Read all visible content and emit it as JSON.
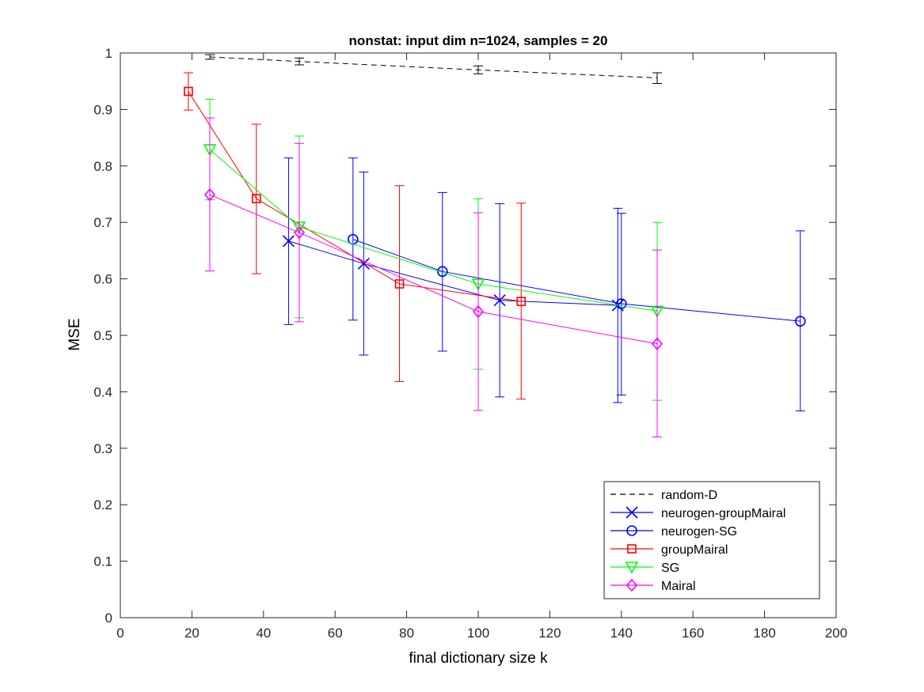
{
  "chart_data": {
    "type": "line",
    "title": "nonstat: input dim n=1024, samples = 20",
    "xlabel": "final dictionary size k",
    "ylabel": "MSE",
    "xlim": [
      0,
      200
    ],
    "ylim": [
      0,
      1
    ],
    "xticks": [
      0,
      20,
      40,
      60,
      80,
      100,
      120,
      140,
      160,
      180,
      200
    ],
    "yticks": [
      0,
      0.1,
      0.2,
      0.3,
      0.4,
      0.5,
      0.6,
      0.7,
      0.8,
      0.9,
      1
    ],
    "grid": false,
    "legend_position": "bottom-right",
    "series": [
      {
        "name": "random-D",
        "color": "#000000",
        "marker": "none",
        "dash": true,
        "points": [
          {
            "x": 25,
            "y": 0.993,
            "lo": 0.989,
            "hi": 0.997
          },
          {
            "x": 50,
            "y": 0.985,
            "lo": 0.979,
            "hi": 0.991
          },
          {
            "x": 100,
            "y": 0.97,
            "lo": 0.963,
            "hi": 0.977
          },
          {
            "x": 150,
            "y": 0.956,
            "lo": 0.946,
            "hi": 0.965
          }
        ]
      },
      {
        "name": "neurogen-groupMairal",
        "color": "#0000ff",
        "marker": "x",
        "dash": false,
        "points": [
          {
            "x": 47,
            "y": 0.667,
            "lo": 0.519,
            "hi": 0.814
          },
          {
            "x": 68,
            "y": 0.627,
            "lo": 0.465,
            "hi": 0.789
          },
          {
            "x": 106,
            "y": 0.562,
            "lo": 0.391,
            "hi": 0.733
          },
          {
            "x": 139,
            "y": 0.553,
            "lo": 0.381,
            "hi": 0.725
          }
        ]
      },
      {
        "name": "neurogen-SG",
        "color": "#0000ff",
        "marker": "circle",
        "dash": false,
        "points": [
          {
            "x": 65,
            "y": 0.67,
            "lo": 0.527,
            "hi": 0.814
          },
          {
            "x": 90,
            "y": 0.613,
            "lo": 0.472,
            "hi": 0.753
          },
          {
            "x": 140,
            "y": 0.556,
            "lo": 0.394,
            "hi": 0.716
          },
          {
            "x": 190,
            "y": 0.525,
            "lo": 0.366,
            "hi": 0.685
          }
        ]
      },
      {
        "name": "groupMairal",
        "color": "#ff0000",
        "marker": "square",
        "dash": false,
        "points": [
          {
            "x": 19,
            "y": 0.932,
            "lo": 0.899,
            "hi": 0.965
          },
          {
            "x": 38,
            "y": 0.742,
            "lo": 0.609,
            "hi": 0.874
          },
          {
            "x": 78,
            "y": 0.591,
            "lo": 0.418,
            "hi": 0.765
          },
          {
            "x": 112,
            "y": 0.56,
            "lo": 0.387,
            "hi": 0.734
          }
        ]
      },
      {
        "name": "SG",
        "color": "#00ff00",
        "marker": "triangle-down",
        "dash": false,
        "points": [
          {
            "x": 25,
            "y": 0.829,
            "lo": 0.74,
            "hi": 0.918
          },
          {
            "x": 50,
            "y": 0.692,
            "lo": 0.531,
            "hi": 0.853
          },
          {
            "x": 100,
            "y": 0.591,
            "lo": 0.44,
            "hi": 0.742
          },
          {
            "x": 150,
            "y": 0.543,
            "lo": 0.385,
            "hi": 0.7
          }
        ]
      },
      {
        "name": "Mairal",
        "color": "#ff00ff",
        "marker": "diamond",
        "dash": false,
        "points": [
          {
            "x": 25,
            "y": 0.749,
            "lo": 0.614,
            "hi": 0.885
          },
          {
            "x": 50,
            "y": 0.682,
            "lo": 0.524,
            "hi": 0.84
          },
          {
            "x": 100,
            "y": 0.542,
            "lo": 0.367,
            "hi": 0.717
          },
          {
            "x": 150,
            "y": 0.485,
            "lo": 0.32,
            "hi": 0.651
          }
        ]
      }
    ]
  }
}
